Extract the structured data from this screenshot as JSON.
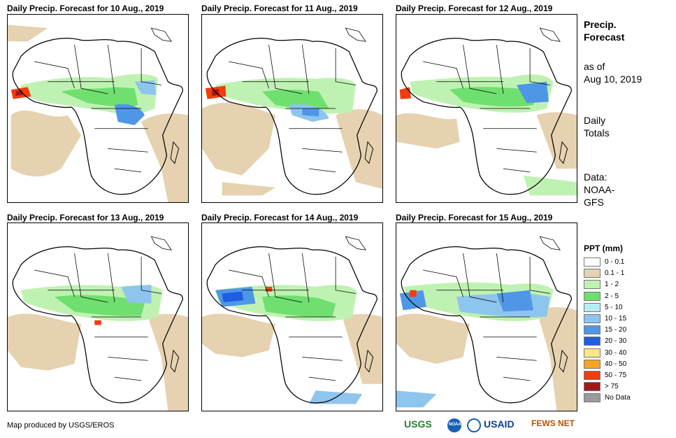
{
  "panels": [
    {
      "title": "Daily Precip. Forecast for 10 Aug., 2019"
    },
    {
      "title": "Daily Precip. Forecast for 11 Aug., 2019"
    },
    {
      "title": "Daily Precip. Forecast for 12 Aug., 2019"
    },
    {
      "title": "Daily Precip. Forecast for 13 Aug., 2019"
    },
    {
      "title": "Daily Precip. Forecast for 14 Aug., 2019"
    },
    {
      "title": "Daily Precip. Forecast for 15 Aug., 2019"
    }
  ],
  "sidebar": {
    "title_line1": "Precip.",
    "title_line2": "Forecast",
    "asof_line1": "as of",
    "asof_line2": "Aug 10, 2019",
    "totals_line1": "Daily",
    "totals_line2": "Totals",
    "data_line1": "Data:",
    "data_line2": "NOAA-",
    "data_line3": "GFS"
  },
  "legend": {
    "title": "PPT (mm)",
    "items": [
      {
        "label": "0 - 0.1",
        "color": "#ffffff"
      },
      {
        "label": "0.1 - 1",
        "color": "#e6d2b0"
      },
      {
        "label": "1 - 2",
        "color": "#bff2b2"
      },
      {
        "label": "2 - 5",
        "color": "#6fe06f"
      },
      {
        "label": "5 - 10",
        "color": "#b5eef5"
      },
      {
        "label": "10 - 15",
        "color": "#8ec5ee"
      },
      {
        "label": "15 - 20",
        "color": "#4f97e6"
      },
      {
        "label": "20 - 30",
        "color": "#1f5ee0"
      },
      {
        "label": "30 - 40",
        "color": "#fde58a"
      },
      {
        "label": "40 - 50",
        "color": "#f5a623"
      },
      {
        "label": "50 - 75",
        "color": "#f23c0e"
      },
      {
        "label": "> 75",
        "color": "#a31818"
      },
      {
        "label": "No Data",
        "color": "#9b9b9b"
      }
    ]
  },
  "footer": {
    "credit": "Map produced by USGS/EROS",
    "logos": [
      "USGS",
      "NOAA",
      "USAID",
      "FEWS NET"
    ]
  }
}
